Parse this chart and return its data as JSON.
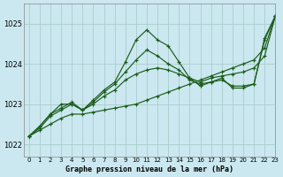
{
  "title": "Graphe pression niveau de la mer (hPa)",
  "bg_color": "#cbe8f0",
  "grid_color": "#aacccc",
  "line_color": "#1a5c1a",
  "xlim": [
    -0.5,
    23
  ],
  "ylim": [
    1021.7,
    1025.5
  ],
  "yticks": [
    1022,
    1023,
    1024,
    1025
  ],
  "xticks": [
    0,
    1,
    2,
    3,
    4,
    5,
    6,
    7,
    8,
    9,
    10,
    11,
    12,
    13,
    14,
    15,
    16,
    17,
    18,
    19,
    20,
    21,
    22,
    23
  ],
  "series": [
    [
      1022.2,
      1022.35,
      1022.5,
      1022.65,
      1022.75,
      1022.75,
      1022.8,
      1022.85,
      1022.9,
      1022.95,
      1023.0,
      1023.1,
      1023.2,
      1023.3,
      1023.4,
      1023.5,
      1023.6,
      1023.7,
      1023.8,
      1023.9,
      1024.0,
      1024.1,
      1024.4,
      1025.2
    ],
    [
      1022.2,
      1022.4,
      1022.7,
      1022.85,
      1023.0,
      1022.85,
      1023.0,
      1023.2,
      1023.35,
      1023.6,
      1023.75,
      1023.85,
      1023.9,
      1023.85,
      1023.75,
      1023.65,
      1023.55,
      1023.65,
      1023.7,
      1023.75,
      1023.8,
      1023.9,
      1024.2,
      1025.2
    ],
    [
      1022.2,
      1022.45,
      1022.75,
      1022.9,
      1023.05,
      1022.85,
      1023.05,
      1023.3,
      1023.5,
      1023.8,
      1024.1,
      1024.35,
      1024.2,
      1024.0,
      1023.85,
      1023.6,
      1023.5,
      1023.55,
      1023.6,
      1023.45,
      1023.45,
      1023.5,
      1024.6,
      1025.2
    ],
    [
      1022.2,
      1022.45,
      1022.75,
      1023.0,
      1023.0,
      1022.85,
      1023.1,
      1023.35,
      1023.55,
      1024.05,
      1024.6,
      1024.85,
      1024.6,
      1024.45,
      1024.05,
      1023.65,
      1023.45,
      1023.55,
      1023.65,
      1023.4,
      1023.4,
      1023.5,
      1024.65,
      1025.2
    ]
  ]
}
